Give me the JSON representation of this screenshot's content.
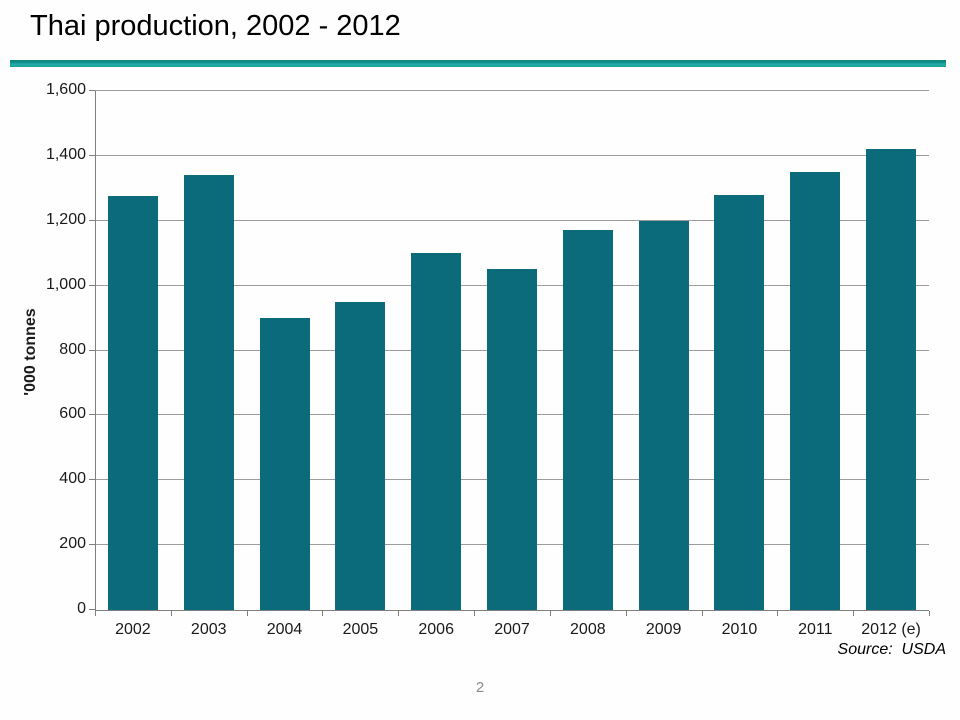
{
  "slide": {
    "title": "Thai production, 2002 - 2012",
    "page_number": "2"
  },
  "chart_data": {
    "type": "bar",
    "title": "Thai production, 2002 - 2012",
    "categories": [
      "2002",
      "2003",
      "2004",
      "2005",
      "2006",
      "2007",
      "2008",
      "2009",
      "2010",
      "2011",
      "2012 (e)"
    ],
    "values": [
      1275,
      1340,
      900,
      950,
      1100,
      1050,
      1170,
      1200,
      1280,
      1350,
      1420
    ],
    "xlabel": "",
    "ylabel": "'000 tonnes",
    "ylim": [
      0,
      1600
    ],
    "ytick_interval": 200,
    "ytick_labels": [
      "0",
      "200",
      "400",
      "600",
      "800",
      "1,000",
      "1,200",
      "1,400",
      "1,600"
    ],
    "grid": true,
    "legend": false,
    "source": "Source:  USDA"
  },
  "colors": {
    "bar": "#0b6b7a",
    "title_rule": "#1ca09b",
    "gridline": "#9c9c9c",
    "axis": "#7f7f7f",
    "page_number": "#8a8a8a"
  }
}
